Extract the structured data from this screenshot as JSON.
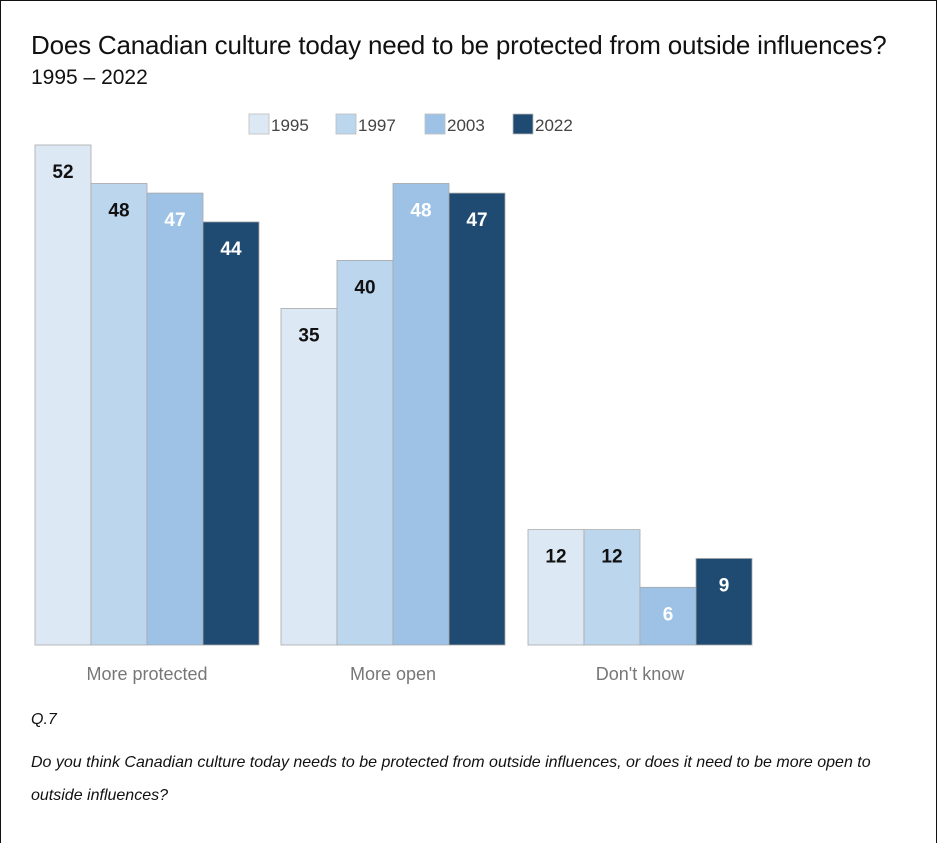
{
  "chart_data": {
    "type": "bar",
    "title": "Does Canadian culture today need to be protected from outside influences?",
    "subtitle": "1995 – 2022",
    "categories": [
      "More protected",
      "More open",
      "Don't know"
    ],
    "series": [
      {
        "name": "1995",
        "color": "#dde8f5",
        "values": [
          52,
          35,
          12
        ]
      },
      {
        "name": "1997",
        "color": "#bcd6ee",
        "values": [
          48,
          40,
          12
        ]
      },
      {
        "name": "2003",
        "color": "#9dc2e6",
        "values": [
          47,
          48,
          6
        ]
      },
      {
        "name": "2022",
        "color": "#1f4b72",
        "values": [
          44,
          47,
          9
        ]
      }
    ],
    "legend_position": "top-center",
    "ylim": [
      0,
      52
    ],
    "grid": false,
    "label_colors": {
      "1995": "#111111",
      "1997": "#111111",
      "2003": "#ffffff",
      "2022": "#ffffff"
    }
  },
  "footnote": {
    "question_number": "Q.7",
    "question_text": "Do you think Canadian culture today needs to be protected from outside influences, or does it need to be more open to outside influences?"
  }
}
